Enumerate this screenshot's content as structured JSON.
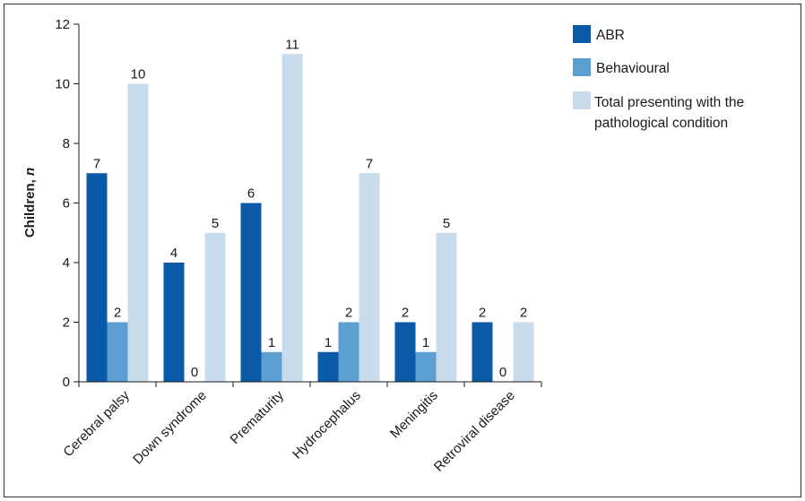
{
  "chart_data": {
    "type": "bar",
    "categories": [
      "Cerebral palsy",
      "Down syndrome",
      "Prematurity",
      "Hydrocephalus",
      "Meningitis",
      "Retroviral disease"
    ],
    "series": [
      {
        "name": "ABR",
        "values": [
          7,
          4,
          6,
          1,
          2,
          2
        ],
        "color": "#0a5aa8"
      },
      {
        "name": "Behavioural",
        "values": [
          2,
          0,
          1,
          2,
          1,
          0
        ],
        "color": "#5c9fd2"
      },
      {
        "name": "Total presenting with the pathological condition",
        "values": [
          10,
          5,
          11,
          7,
          5,
          2
        ],
        "color": "#c9dced"
      }
    ],
    "legend_lines": {
      "series_2": [
        "Total presenting with the",
        "pathological condition"
      ]
    },
    "ylabel": {
      "text": "Children, ",
      "italic_part": "n"
    },
    "ylim": [
      0,
      12
    ],
    "yticks": [
      0,
      2,
      4,
      6,
      8,
      10,
      12
    ],
    "grid": false,
    "legend_position": "top-right",
    "data_labels": true
  }
}
